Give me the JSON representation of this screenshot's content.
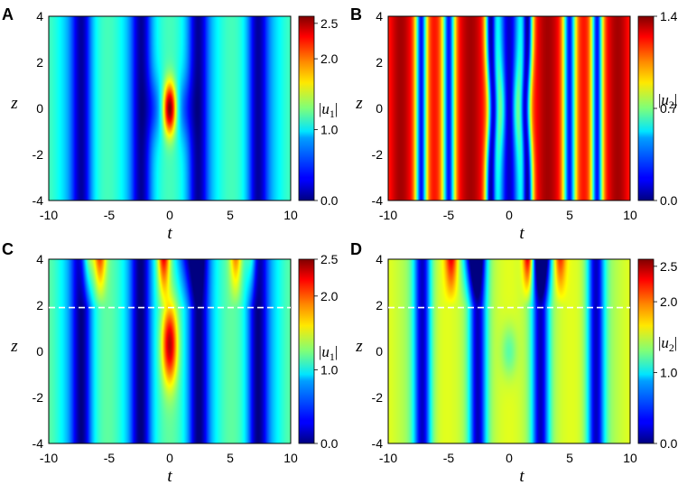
{
  "chart_data": [
    {
      "type": "heatmap",
      "panel_label": "A",
      "xlabel": "t",
      "ylabel": "z",
      "xlim": [
        -10,
        10
      ],
      "ylim": [
        -4,
        4
      ],
      "x_ticks": [
        "-10",
        "-5",
        "0",
        "5",
        "10"
      ],
      "y_ticks": [
        "-4",
        "-2",
        "0",
        "2",
        "4"
      ],
      "colorbar": {
        "label_var": "u",
        "label_sub": "1",
        "range": [
          0.0,
          2.6
        ],
        "ticks": [
          "0.0",
          "1.0",
          "2.0",
          "2.5"
        ],
        "tick_values": [
          0.0,
          1.0,
          2.0,
          2.5
        ]
      },
      "colormap": "jet",
      "dashed_line_z": null
    },
    {
      "type": "heatmap",
      "panel_label": "B",
      "xlabel": "t",
      "ylabel": "z",
      "xlim": [
        -10,
        10
      ],
      "ylim": [
        -4,
        4
      ],
      "x_ticks": [
        "-10",
        "-5",
        "0",
        "5",
        "10"
      ],
      "y_ticks": [
        "-4",
        "-2",
        "0",
        "2",
        "4"
      ],
      "colorbar": {
        "label_var": "u",
        "label_sub": "2",
        "range": [
          0.0,
          1.4
        ],
        "ticks": [
          "0.0",
          "0.7",
          "1.4"
        ],
        "tick_values": [
          0.0,
          0.7,
          1.4
        ]
      },
      "colormap": "jet",
      "dashed_line_z": null
    },
    {
      "type": "heatmap",
      "panel_label": "C",
      "xlabel": "t",
      "ylabel": "z",
      "xlim": [
        -10,
        10
      ],
      "ylim": [
        -4,
        4
      ],
      "x_ticks": [
        "-10",
        "-5",
        "0",
        "5",
        "10"
      ],
      "y_ticks": [
        "-4",
        "-2",
        "0",
        "2",
        "4"
      ],
      "colorbar": {
        "label_var": "u",
        "label_sub": "1",
        "range": [
          0.0,
          2.5
        ],
        "ticks": [
          "0.0",
          "1.0",
          "2.0",
          "2.5"
        ],
        "tick_values": [
          0.0,
          1.0,
          2.0,
          2.5
        ]
      },
      "colormap": "jet",
      "dashed_line_z": 1.9
    },
    {
      "type": "heatmap",
      "panel_label": "D",
      "xlabel": "t",
      "ylabel": "z",
      "xlim": [
        -10,
        10
      ],
      "ylim": [
        -4,
        4
      ],
      "x_ticks": [
        "-10",
        "-5",
        "0",
        "5",
        "10"
      ],
      "y_ticks": [
        "-4",
        "-2",
        "0",
        "2",
        "4"
      ],
      "colorbar": {
        "label_var": "u",
        "label_sub": "2",
        "range": [
          0.0,
          2.6
        ],
        "ticks": [
          "0.0",
          "1.0",
          "2.0",
          "2.5"
        ],
        "tick_values": [
          0.0,
          1.0,
          2.0,
          2.5
        ]
      },
      "colormap": "jet",
      "dashed_line_z": 1.9
    }
  ]
}
